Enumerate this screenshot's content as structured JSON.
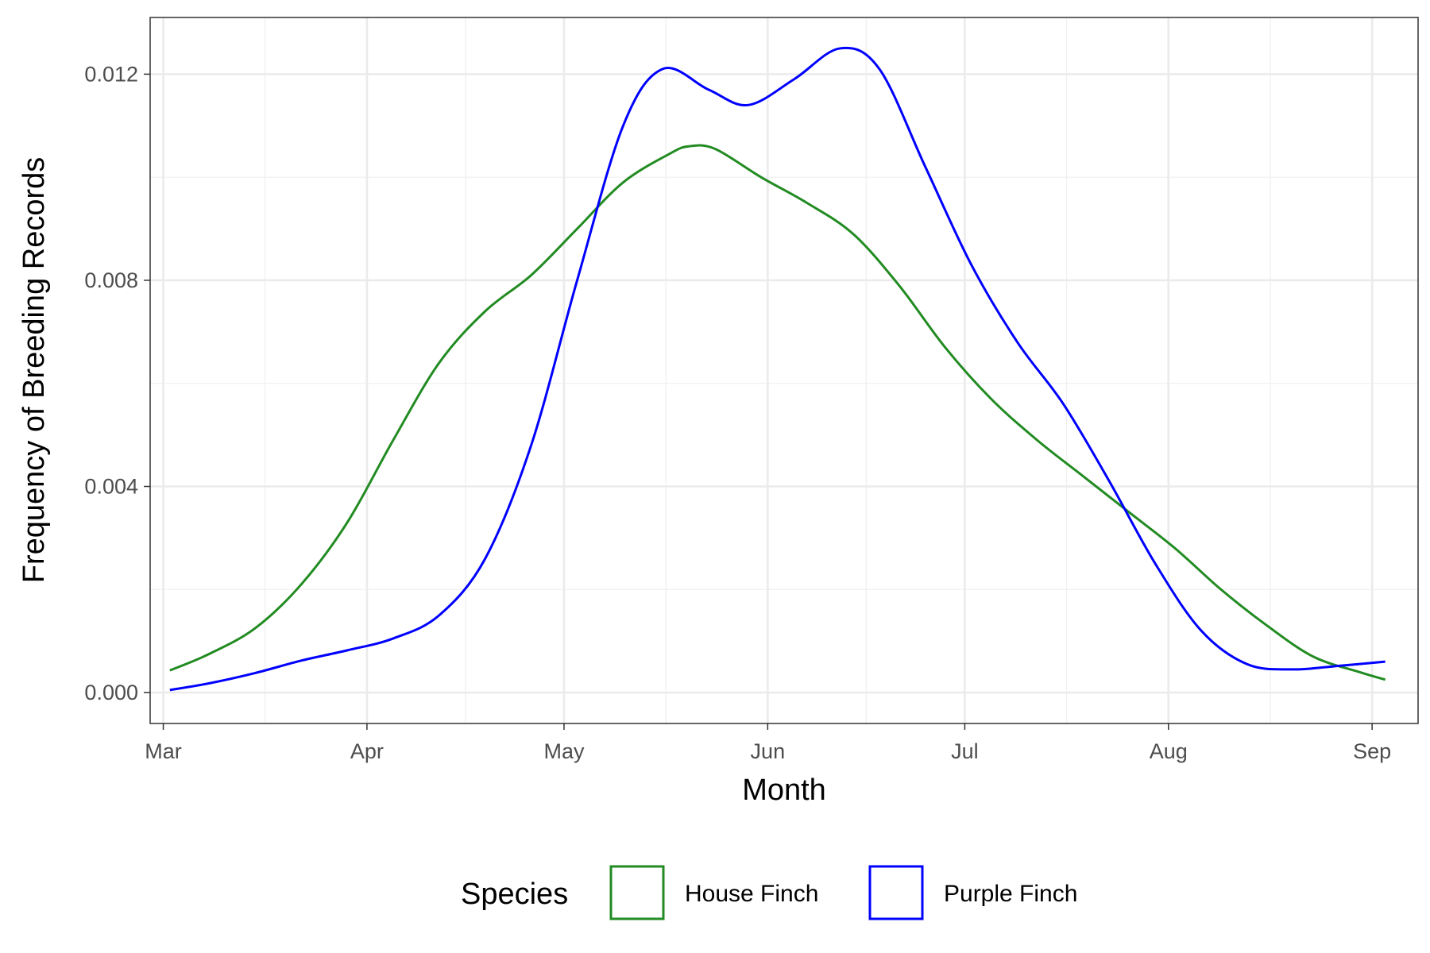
{
  "chart_data": {
    "type": "line",
    "subtype": "density",
    "title": "",
    "xlabel": "Month",
    "ylabel": "Frequency of Breeding Records",
    "x_ticks": [
      "Mar",
      "Apr",
      "May",
      "Jun",
      "Jul",
      "Aug",
      "Sep"
    ],
    "xlim": [
      "2024-02-28",
      "2024-09-08"
    ],
    "ylim": [
      -0.0006,
      0.0131
    ],
    "y_ticks": [
      0.0,
      0.004,
      0.008,
      0.012
    ],
    "y_tick_labels": [
      "0.000",
      "0.004",
      "0.008",
      "0.012"
    ],
    "grid": true,
    "legend": {
      "title": "Species",
      "position": "bottom"
    },
    "series": [
      {
        "name": "House Finch",
        "color": "#228B22",
        "points": [
          [
            "2024-03-02",
            0.00043
          ],
          [
            "2024-03-08",
            0.00075
          ],
          [
            "2024-03-15",
            0.00125
          ],
          [
            "2024-03-22",
            0.0021
          ],
          [
            "2024-03-29",
            0.0033
          ],
          [
            "2024-04-05",
            0.0049
          ],
          [
            "2024-04-12",
            0.0064
          ],
          [
            "2024-04-19",
            0.0074
          ],
          [
            "2024-04-26",
            0.0081
          ],
          [
            "2024-05-03",
            0.009
          ],
          [
            "2024-05-10",
            0.0099
          ],
          [
            "2024-05-17",
            0.01045
          ],
          [
            "2024-05-20",
            0.0106
          ],
          [
            "2024-05-24",
            0.01055
          ],
          [
            "2024-05-31",
            0.01
          ],
          [
            "2024-06-07",
            0.0095
          ],
          [
            "2024-06-14",
            0.0089
          ],
          [
            "2024-06-21",
            0.0079
          ],
          [
            "2024-06-28",
            0.0067
          ],
          [
            "2024-07-05",
            0.0057
          ],
          [
            "2024-07-12",
            0.0049
          ],
          [
            "2024-07-19",
            0.0042
          ],
          [
            "2024-07-26",
            0.0035
          ],
          [
            "2024-08-02",
            0.0028
          ],
          [
            "2024-08-09",
            0.002
          ],
          [
            "2024-08-16",
            0.0013
          ],
          [
            "2024-08-23",
            0.0007
          ],
          [
            "2024-08-30",
            0.0004
          ],
          [
            "2024-09-03",
            0.00025
          ]
        ]
      },
      {
        "name": "Purple Finch",
        "color": "#0000FF",
        "points": [
          [
            "2024-03-02",
            5e-05
          ],
          [
            "2024-03-08",
            0.00018
          ],
          [
            "2024-03-15",
            0.00038
          ],
          [
            "2024-03-22",
            0.00062
          ],
          [
            "2024-03-29",
            0.00082
          ],
          [
            "2024-04-05",
            0.00105
          ],
          [
            "2024-04-12",
            0.0015
          ],
          [
            "2024-04-19",
            0.0026
          ],
          [
            "2024-04-26",
            0.0048
          ],
          [
            "2024-05-03",
            0.008
          ],
          [
            "2024-05-10",
            0.011
          ],
          [
            "2024-05-16",
            0.0121
          ],
          [
            "2024-05-23",
            0.0117
          ],
          [
            "2024-05-29",
            0.0114
          ],
          [
            "2024-06-05",
            0.0119
          ],
          [
            "2024-06-12",
            0.0125
          ],
          [
            "2024-06-18",
            0.0121
          ],
          [
            "2024-06-25",
            0.0102
          ],
          [
            "2024-07-02",
            0.0083
          ],
          [
            "2024-07-09",
            0.0068
          ],
          [
            "2024-07-16",
            0.0056
          ],
          [
            "2024-07-23",
            0.0041
          ],
          [
            "2024-07-30",
            0.0025
          ],
          [
            "2024-08-06",
            0.0012
          ],
          [
            "2024-08-13",
            0.00055
          ],
          [
            "2024-08-20",
            0.00045
          ],
          [
            "2024-08-27",
            0.00052
          ],
          [
            "2024-09-03",
            0.0006
          ]
        ]
      }
    ]
  }
}
